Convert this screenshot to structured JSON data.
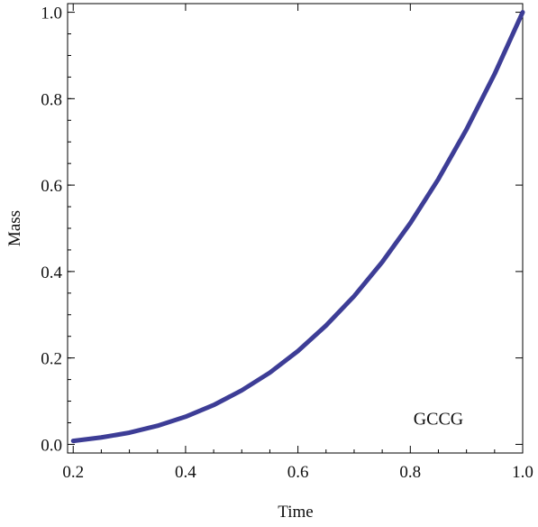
{
  "chart_data": {
    "type": "line",
    "title": "",
    "xlabel": "Time",
    "ylabel": "Mass",
    "xlim": [
      0.19,
      1.0
    ],
    "ylim": [
      -0.02,
      1.02
    ],
    "xticks": [
      0.2,
      0.4,
      0.6,
      0.8,
      1.0
    ],
    "xtick_labels": [
      "0.2",
      "0.4",
      "0.6",
      "0.8",
      "1.0"
    ],
    "yticks": [
      0.0,
      0.2,
      0.4,
      0.6,
      0.8,
      1.0
    ],
    "ytick_labels": [
      "0.0",
      "0.2",
      "0.4",
      "0.6",
      "0.8",
      "1.0"
    ],
    "annotations": [
      {
        "text": "GCCG",
        "x": 0.85,
        "y": 0.06
      }
    ],
    "grid": false,
    "series": [
      {
        "color": "#3d3d96",
        "x": [
          0.2,
          0.25,
          0.3,
          0.35,
          0.4,
          0.45,
          0.5,
          0.55,
          0.6,
          0.65,
          0.7,
          0.75,
          0.8,
          0.85,
          0.9,
          0.95,
          1.0
        ],
        "y": [
          0.008,
          0.016,
          0.027,
          0.043,
          0.064,
          0.091,
          0.125,
          0.166,
          0.216,
          0.275,
          0.343,
          0.422,
          0.512,
          0.614,
          0.729,
          0.857,
          1.0
        ]
      }
    ]
  }
}
